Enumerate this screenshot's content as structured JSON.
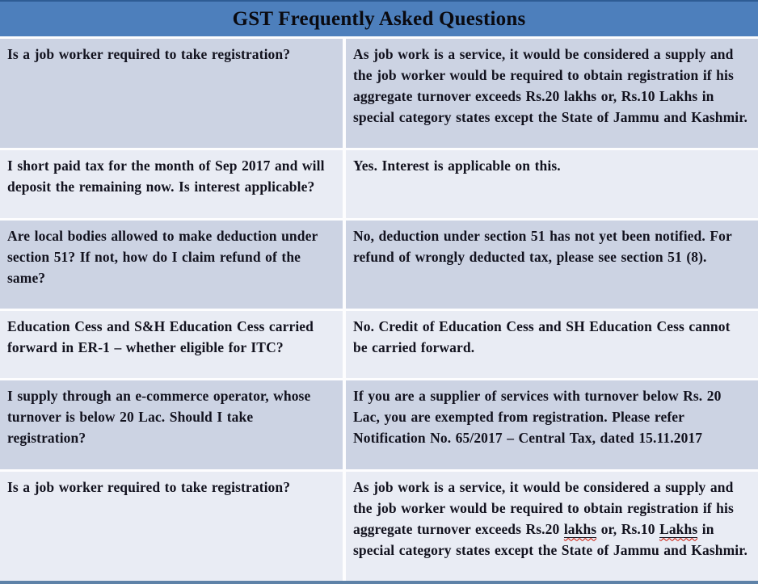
{
  "title": "GST Frequently Asked Questions",
  "colors": {
    "header_bg": "#4d7fbc",
    "header_top_edge": "#2e5c94",
    "title_text": "#0a0a10",
    "row_dark": "#ccd3e3",
    "row_light": "#e9ecf4",
    "text": "#12121e",
    "border": "#fdfdfe",
    "bottom_border": "#5e82a8",
    "spell_underline": "#cc1100"
  },
  "table": {
    "columns": [
      "question",
      "answer"
    ],
    "rows": [
      {
        "shade": "dark",
        "question": "Is a job worker required to take registration?",
        "answer": [
          {
            "t": "As job work is a service, it would be considered a supply and the job worker would be required to obtain registration if his aggregate turnover exceeds Rs.20 lakhs or, Rs.10 Lakhs in special category states except the State of Jammu and Kashmir."
          }
        ]
      },
      {
        "shade": "light",
        "question": "I short paid tax for the month of Sep 2017 and will deposit the remaining now. Is interest applicable?",
        "answer": [
          {
            "t": "Yes. Interest is applicable on this."
          }
        ]
      },
      {
        "shade": "dark",
        "question": "Are local bodies allowed to make deduction under section 51? If not, how do I claim refund of the same?",
        "answer": [
          {
            "t": "No, deduction under section 51 has not yet been notified. For refund of wrongly deducted tax, please see section 51 (8)."
          }
        ]
      },
      {
        "shade": "light",
        "question": "Education Cess and S&H Education Cess carried forward in ER-1 – whether eligible for ITC?",
        "answer": [
          {
            "t": "No. Credit of Education Cess and SH Education Cess cannot be carried forward."
          }
        ]
      },
      {
        "shade": "dark",
        "question": "I supply through an e-commerce operator, whose turnover is below 20 Lac. Should I take registration?",
        "answer": [
          {
            "t": "If you are a supplier of services with turnover below Rs. 20 Lac, you are exempted from registration. Please refer Notification No. 65/2017 – Central Tax, dated 15.11.2017"
          }
        ]
      },
      {
        "shade": "light",
        "question": "Is a job worker required to take registration?",
        "answer": [
          {
            "t": "As job work is a service, it would be considered a supply and the job worker would be required to obtain registration if his aggregate turnover exceeds Rs.20 "
          },
          {
            "t": "lakhs",
            "spell": true
          },
          {
            "t": " or, Rs.10 "
          },
          {
            "t": "Lakhs",
            "spell": true
          },
          {
            "t": " in special category states except the State of Jammu and Kashmir."
          }
        ]
      }
    ]
  }
}
